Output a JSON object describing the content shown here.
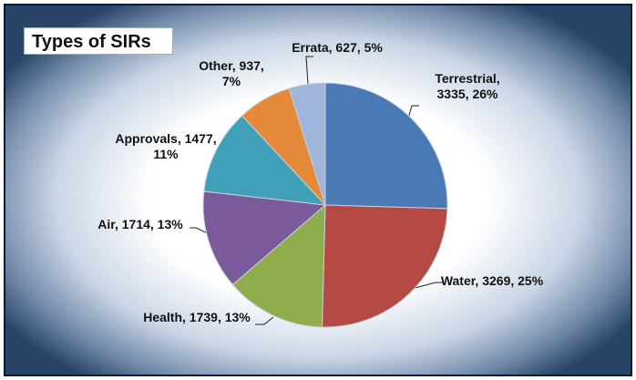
{
  "chart_data": {
    "type": "pie",
    "title": "Types of SIRs",
    "categories": [
      "Terrestrial",
      "Water",
      "Health",
      "Air",
      "Approvals",
      "Other",
      "Errata"
    ],
    "values": [
      3335,
      3269,
      1739,
      1714,
      1477,
      937,
      627
    ],
    "value_labels": [
      "Terrestrial, 3335, 26%",
      "Water, 3269, 25%",
      "Health, 1739, 13%",
      "Air, 1714, 13%",
      "Approvals, 1477, 11%",
      "Other, 937, 7%",
      "Errata, 627, 5%"
    ],
    "colors": [
      "#4a7ab5",
      "#b54a45",
      "#8fad4c",
      "#7a5a9a",
      "#40a0b8",
      "#e5893a",
      "#9fb5dc"
    ]
  }
}
